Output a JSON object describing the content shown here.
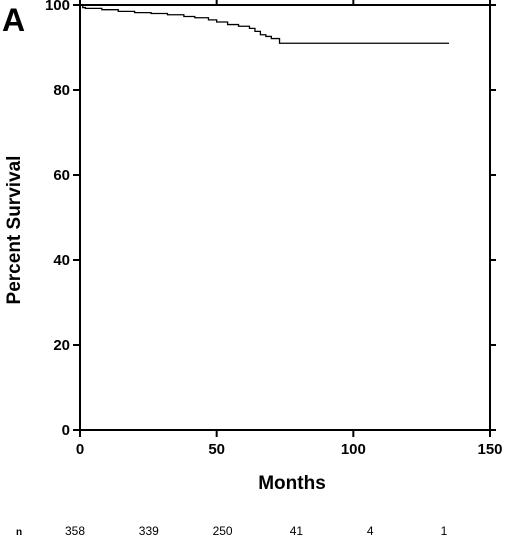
{
  "panel_label": "A",
  "chart_data": {
    "type": "line",
    "title": "",
    "xlabel": "Months",
    "ylabel": "Percent Survival",
    "xlim": [
      0,
      150
    ],
    "ylim": [
      0,
      100
    ],
    "x_ticks": [
      0,
      50,
      100,
      150
    ],
    "y_ticks": [
      0,
      20,
      40,
      60,
      80,
      100
    ],
    "grid": false,
    "series": [
      {
        "step": true,
        "color": "#000000",
        "points": [
          [
            0,
            100
          ],
          [
            1,
            99.4
          ],
          [
            2,
            99.2
          ],
          [
            8,
            98.9
          ],
          [
            14,
            98.5
          ],
          [
            20,
            98.2
          ],
          [
            26,
            98.0
          ],
          [
            32,
            97.7
          ],
          [
            38,
            97.3
          ],
          [
            42,
            97.0
          ],
          [
            47,
            96.5
          ],
          [
            50,
            96.0
          ],
          [
            54,
            95.4
          ],
          [
            58,
            95.0
          ],
          [
            62,
            94.5
          ],
          [
            64,
            93.8
          ],
          [
            66,
            93.0
          ],
          [
            68,
            92.6
          ],
          [
            70,
            92.1
          ],
          [
            73,
            91.0
          ],
          [
            135,
            91.0
          ]
        ]
      }
    ],
    "risk_table": {
      "label": "n",
      "values": [
        "358",
        "339",
        "250",
        "41",
        "4",
        "1"
      ],
      "months": [
        0,
        27,
        54,
        81,
        108,
        135
      ]
    }
  }
}
